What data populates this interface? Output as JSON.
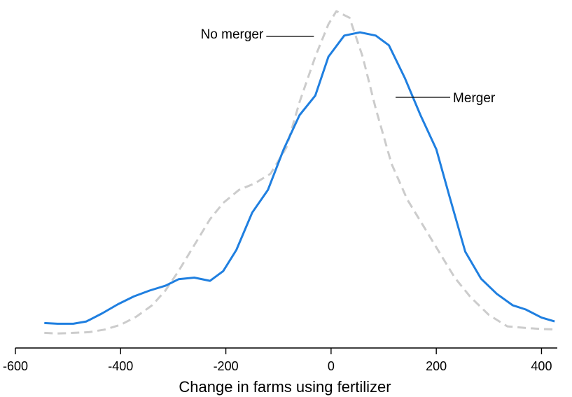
{
  "chart_data": {
    "type": "line",
    "title": "",
    "xlabel": "Change in farms using fertilizer",
    "ylabel": "",
    "xlim": [
      -600,
      430
    ],
    "ylim": [
      0,
      1
    ],
    "xticks": [
      -600,
      -400,
      -200,
      0,
      200,
      400
    ],
    "xtick_labels": [
      "-600",
      "-400",
      "-200",
      "0",
      "200",
      "400"
    ],
    "y_axis_visible": false,
    "grid": false,
    "legend": "none",
    "series": [
      {
        "name": "Merger",
        "color": "#1f7fe0",
        "style": "solid",
        "x": [
          -545,
          -520,
          -490,
          -465,
          -435,
          -405,
          -375,
          -345,
          -315,
          -290,
          -260,
          -230,
          -205,
          -180,
          -150,
          -120,
          -90,
          -60,
          -30,
          -5,
          25,
          55,
          85,
          110,
          140,
          170,
          200,
          225,
          255,
          285,
          315,
          345,
          370,
          400,
          425
        ],
        "y": [
          0.04,
          0.038,
          0.038,
          0.045,
          0.07,
          0.098,
          0.122,
          0.14,
          0.155,
          0.175,
          0.18,
          0.17,
          0.2,
          0.265,
          0.38,
          0.45,
          0.575,
          0.68,
          0.74,
          0.86,
          0.925,
          0.935,
          0.925,
          0.895,
          0.795,
          0.68,
          0.575,
          0.43,
          0.26,
          0.177,
          0.13,
          0.095,
          0.082,
          0.057,
          0.045
        ]
      },
      {
        "name": "No merger",
        "color": "#cccccc",
        "style": "dashed",
        "x": [
          -545,
          -520,
          -490,
          -460,
          -430,
          -400,
          -370,
          -340,
          -315,
          -290,
          -260,
          -230,
          -205,
          -175,
          -145,
          -115,
          -85,
          -60,
          -30,
          -5,
          10,
          35,
          60,
          85,
          115,
          145,
          175,
          205,
          235,
          265,
          300,
          335,
          370,
          400,
          430
        ],
        "y": [
          0.01,
          0.008,
          0.01,
          0.012,
          0.02,
          0.035,
          0.06,
          0.095,
          0.14,
          0.2,
          0.28,
          0.36,
          0.41,
          0.45,
          0.47,
          0.5,
          0.58,
          0.72,
          0.86,
          0.96,
          1.0,
          0.98,
          0.86,
          0.7,
          0.53,
          0.42,
          0.34,
          0.26,
          0.18,
          0.12,
          0.065,
          0.03,
          0.025,
          0.022,
          0.02
        ]
      }
    ],
    "annotations": [
      {
        "text": "No merger",
        "series": "No merger"
      },
      {
        "text": "Merger",
        "series": "Merger"
      }
    ]
  }
}
